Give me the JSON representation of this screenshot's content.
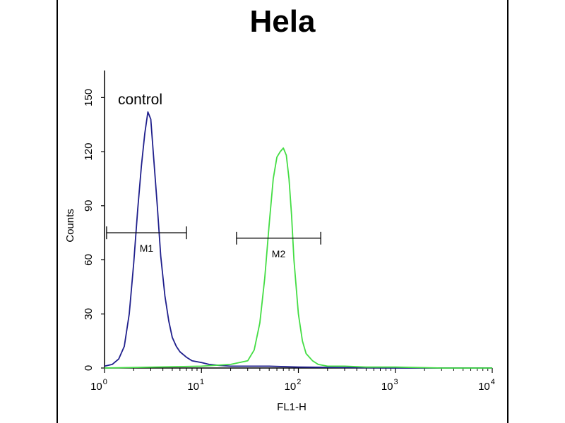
{
  "chart_data": {
    "type": "line",
    "title": "Hela",
    "xlabel": "FL1-H",
    "ylabel": "Counts",
    "x_scale": "log",
    "xlim": [
      1,
      10000
    ],
    "ylim": [
      0,
      165
    ],
    "y_ticks": [
      0,
      30,
      60,
      90,
      120,
      150
    ],
    "x_ticks": [
      {
        "value": 1,
        "base": "10",
        "exp": "0"
      },
      {
        "value": 10,
        "base": "10",
        "exp": "1"
      },
      {
        "value": 100,
        "base": "10",
        "exp": "2"
      },
      {
        "value": 1000,
        "base": "10",
        "exp": "3"
      },
      {
        "value": 10000,
        "base": "10",
        "exp": "4"
      }
    ],
    "annotation": "control",
    "series": [
      {
        "color": "#1f1f8c",
        "x": [
          1.0,
          1.2,
          1.4,
          1.6,
          1.8,
          2.0,
          2.2,
          2.4,
          2.6,
          2.8,
          3.0,
          3.2,
          3.5,
          3.8,
          4.2,
          4.6,
          5.0,
          5.5,
          6.0,
          7.0,
          8.0,
          10,
          12,
          15,
          20,
          30,
          50,
          100,
          1000,
          10000
        ],
        "y": [
          1,
          2,
          5,
          12,
          30,
          58,
          88,
          112,
          130,
          142,
          138,
          118,
          90,
          62,
          40,
          26,
          17,
          12,
          9,
          6,
          4,
          3,
          2,
          1.5,
          1,
          1,
          1,
          0.5,
          0,
          0
        ]
      },
      {
        "color": "#44dd44",
        "x": [
          1,
          10,
          20,
          30,
          35,
          40,
          45,
          50,
          55,
          60,
          65,
          70,
          75,
          80,
          85,
          90,
          100,
          110,
          120,
          140,
          160,
          200,
          300,
          500,
          1000,
          3000,
          10000
        ],
        "y": [
          0,
          1,
          2,
          4,
          10,
          25,
          50,
          80,
          105,
          117,
          120,
          122,
          118,
          105,
          85,
          60,
          30,
          15,
          8,
          4,
          2,
          1,
          1,
          0.5,
          0.5,
          0,
          0
        ]
      }
    ],
    "gates": [
      {
        "label": "M1",
        "x_start": 1.05,
        "x_end": 7.0,
        "y": 75
      },
      {
        "label": "M2",
        "x_start": 23,
        "x_end": 170,
        "y": 72
      }
    ]
  }
}
